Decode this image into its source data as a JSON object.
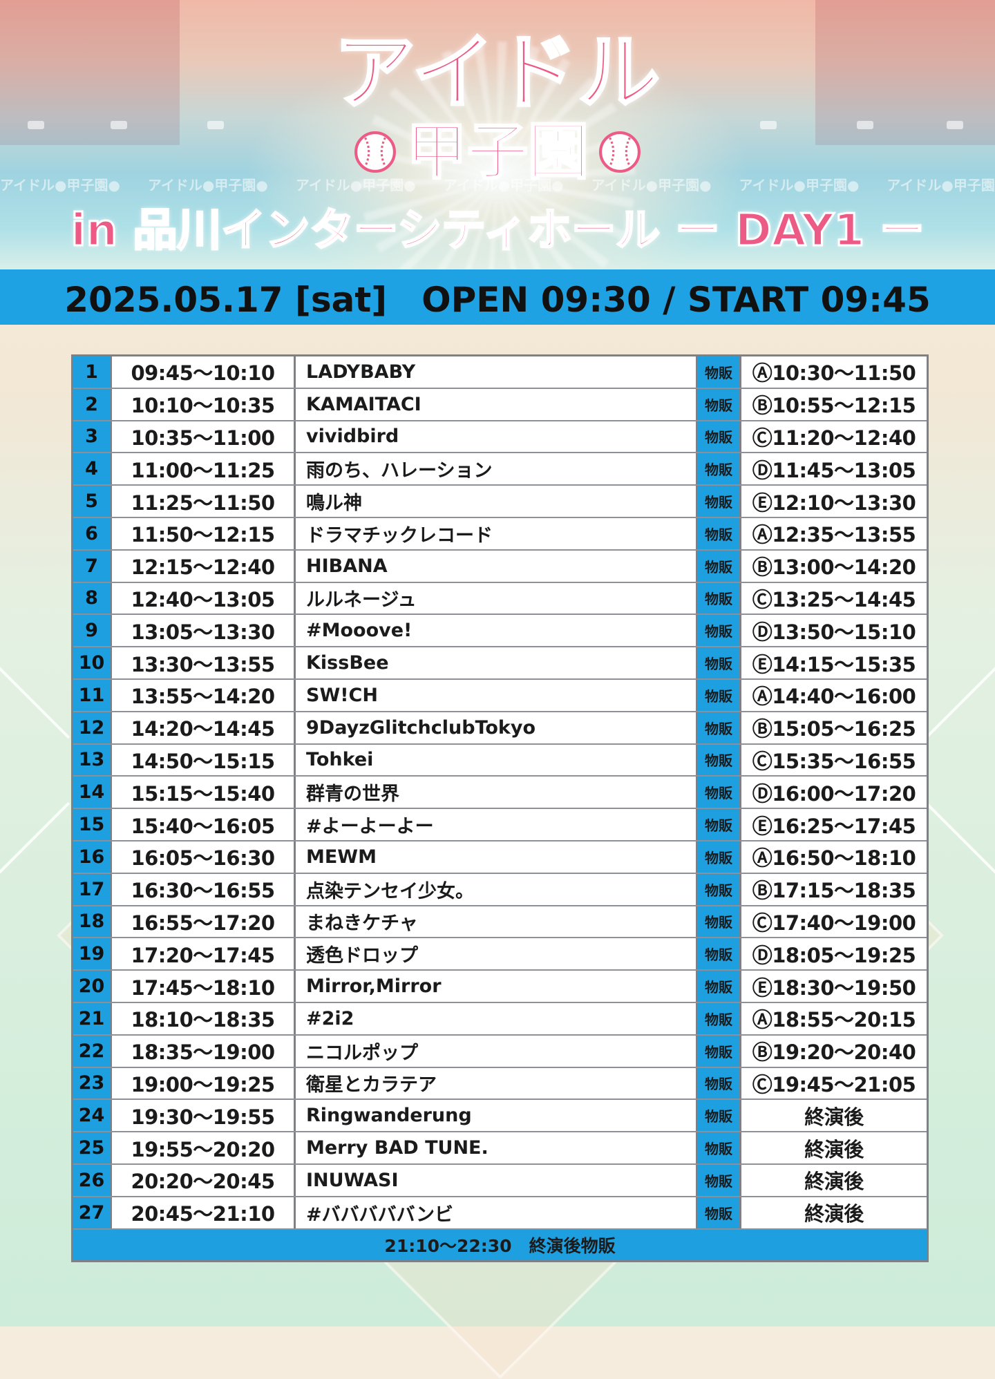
{
  "header": {
    "logo_title": "アイドル",
    "logo_sub": "甲子園",
    "repeat_text": "アイドル●甲子園●",
    "event_title": "in 品川インターシティホール ー DAY1 ー"
  },
  "date_bar": "2025.05.17 [sat]　OPEN 09:30 / START 09:45",
  "merch_label": "物販",
  "schedule": [
    {
      "no": "1",
      "time": "09:45〜10:10",
      "artist": "LADYBABY",
      "slot": "Ⓐ10:30〜11:50"
    },
    {
      "no": "2",
      "time": "10:10〜10:35",
      "artist": "KAMAITACI",
      "slot": "Ⓑ10:55〜12:15"
    },
    {
      "no": "3",
      "time": "10:35〜11:00",
      "artist": "vividbird",
      "slot": "Ⓒ11:20〜12:40"
    },
    {
      "no": "4",
      "time": "11:00〜11:25",
      "artist": "雨のち、ハレーション",
      "slot": "Ⓓ11:45〜13:05"
    },
    {
      "no": "5",
      "time": "11:25〜11:50",
      "artist": "鳴ル神",
      "slot": "Ⓔ12:10〜13:30"
    },
    {
      "no": "6",
      "time": "11:50〜12:15",
      "artist": "ドラマチックレコード",
      "slot": "Ⓐ12:35〜13:55"
    },
    {
      "no": "7",
      "time": "12:15〜12:40",
      "artist": "HIBANA",
      "slot": "Ⓑ13:00〜14:20"
    },
    {
      "no": "8",
      "time": "12:40〜13:05",
      "artist": "ルルネージュ",
      "slot": "Ⓒ13:25〜14:45"
    },
    {
      "no": "9",
      "time": "13:05〜13:30",
      "artist": "#Mooove!",
      "slot": "Ⓓ13:50〜15:10"
    },
    {
      "no": "10",
      "time": "13:30〜13:55",
      "artist": "KissBee",
      "slot": "Ⓔ14:15〜15:35"
    },
    {
      "no": "11",
      "time": "13:55〜14:20",
      "artist": "SW!CH",
      "slot": "Ⓐ14:40〜16:00"
    },
    {
      "no": "12",
      "time": "14:20〜14:45",
      "artist": "9DayzGlitchclubTokyo",
      "slot": "Ⓑ15:05〜16:25"
    },
    {
      "no": "13",
      "time": "14:50〜15:15",
      "artist": "Tohkei",
      "slot": "Ⓒ15:35〜16:55"
    },
    {
      "no": "14",
      "time": "15:15〜15:40",
      "artist": "群青の世界",
      "slot": "Ⓓ16:00〜17:20"
    },
    {
      "no": "15",
      "time": "15:40〜16:05",
      "artist": "#よーよーよー",
      "slot": "Ⓔ16:25〜17:45"
    },
    {
      "no": "16",
      "time": "16:05〜16:30",
      "artist": "MEWM",
      "slot": "Ⓐ16:50〜18:10"
    },
    {
      "no": "17",
      "time": "16:30〜16:55",
      "artist": "点染テンセイ少女。",
      "slot": "Ⓑ17:15〜18:35"
    },
    {
      "no": "18",
      "time": "16:55〜17:20",
      "artist": "まねきケチャ",
      "slot": "Ⓒ17:40〜19:00"
    },
    {
      "no": "19",
      "time": "17:20〜17:45",
      "artist": "透色ドロップ",
      "slot": "Ⓓ18:05〜19:25"
    },
    {
      "no": "20",
      "time": "17:45〜18:10",
      "artist": "Mirror,Mirror",
      "slot": "Ⓔ18:30〜19:50"
    },
    {
      "no": "21",
      "time": "18:10〜18:35",
      "artist": "#2i2",
      "slot": "Ⓐ18:55〜20:15"
    },
    {
      "no": "22",
      "time": "18:35〜19:00",
      "artist": "ニコルポップ",
      "slot": "Ⓑ19:20〜20:40"
    },
    {
      "no": "23",
      "time": "19:00〜19:25",
      "artist": "衛星とカラテア",
      "slot": "Ⓒ19:45〜21:05"
    },
    {
      "no": "24",
      "time": "19:30〜19:55",
      "artist": "Ringwanderung",
      "slot": "終演後"
    },
    {
      "no": "25",
      "time": "19:55〜20:20",
      "artist": "Merry BAD TUNE.",
      "slot": "終演後"
    },
    {
      "no": "26",
      "time": "20:20〜20:45",
      "artist": "INUWASI",
      "slot": "終演後"
    },
    {
      "no": "27",
      "time": "20:45〜21:10",
      "artist": "#バババババンビ",
      "slot": "終演後"
    }
  ],
  "footer": "21:10〜22:30　終演後物販",
  "colors": {
    "accent_blue": "#1e9fe0",
    "logo_pink": "#ec5b86",
    "border_gray": "#7d8187"
  }
}
